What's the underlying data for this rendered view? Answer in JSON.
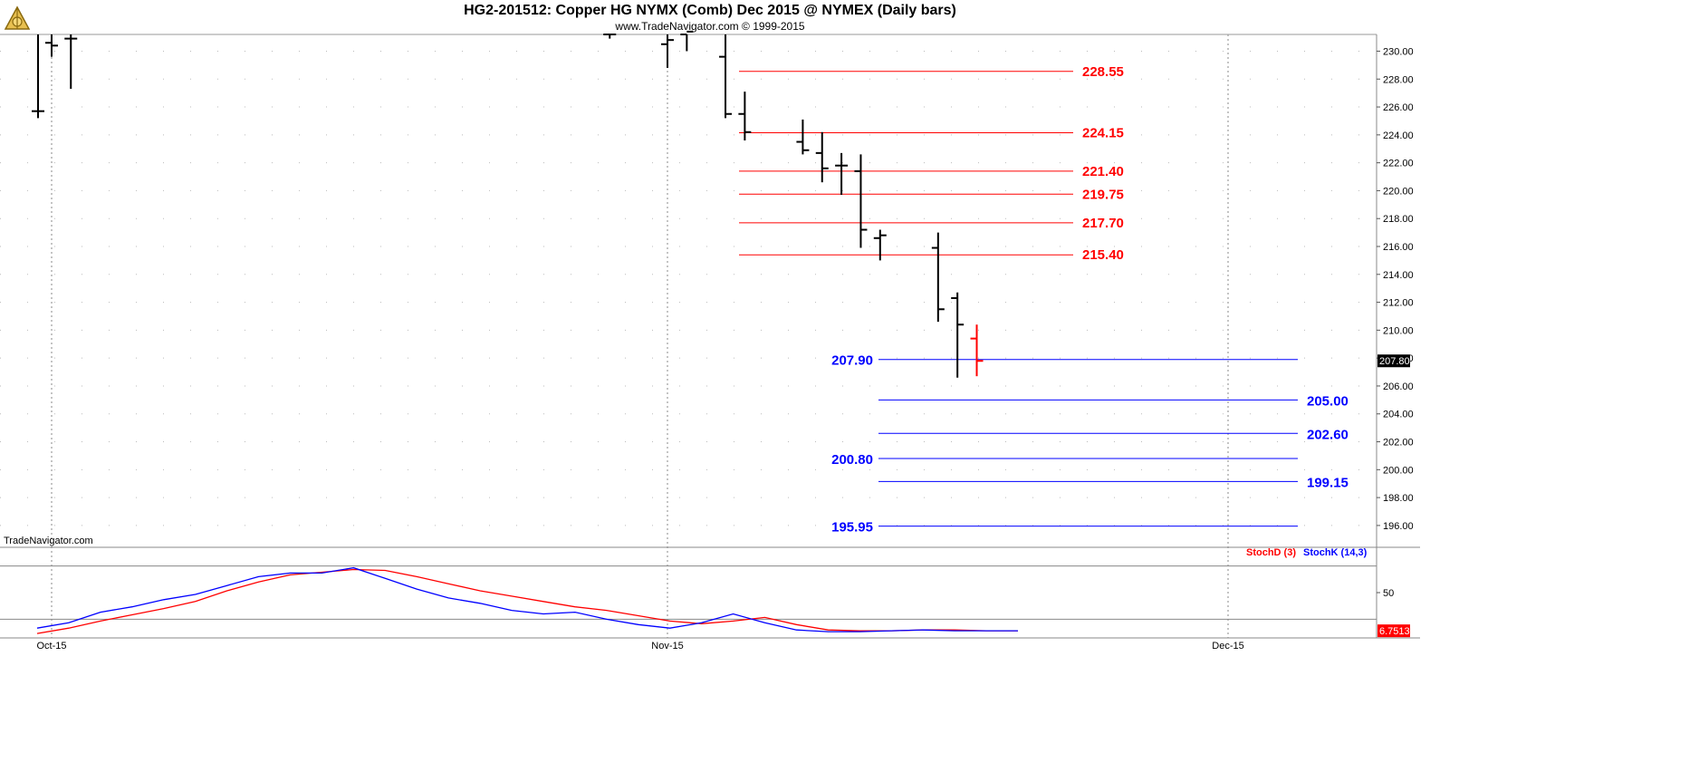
{
  "header": {
    "title": "HG2-201512:  Copper HG NYMX (Comb) Dec 2015 @ NYMEX  (Daily bars)",
    "subtitle": "www.TradeNavigator.com © 1999-2015",
    "watermark": "TradeNavigator.com"
  },
  "colors": {
    "bar": "#000000",
    "last_bar": "#ff0000",
    "resistance": "#ff0000",
    "support": "#0000ff",
    "stochD": "#ff0000",
    "stochK": "#0000ff",
    "grid": "#bbbbbb"
  },
  "chart_data": {
    "type": "ohlc",
    "ylim": [
      194.5,
      231.2
    ],
    "y_ticks": [
      "230.00",
      "228.00",
      "226.00",
      "224.00",
      "222.00",
      "220.00",
      "218.00",
      "216.00",
      "214.00",
      "212.00",
      "210.00",
      "208.00",
      "206.00",
      "204.00",
      "202.00",
      "200.00",
      "198.00",
      "196.00"
    ],
    "current_price_label": "207.80",
    "x_ticks": [
      "Oct-15",
      "Nov-15",
      "Dec-15"
    ],
    "bars": [
      {
        "date": "2015-09-29",
        "open": 225.7,
        "high": 231.5,
        "low": 225.2,
        "close": 225.7
      },
      {
        "date": "2015-10-01",
        "open": 230.6,
        "high": 231.5,
        "low": 229.6,
        "close": 230.4
      },
      {
        "date": "2015-10-02",
        "open": 230.9,
        "high": 231.5,
        "low": 227.3,
        "close": 230.9
      },
      {
        "date": "2015-10-30",
        "open": 231.2,
        "high": 231.5,
        "low": 230.9,
        "close": 231.2
      },
      {
        "date": "2015-11-02",
        "open": 230.5,
        "high": 231.5,
        "low": 228.8,
        "close": 230.8
      },
      {
        "date": "2015-11-03",
        "open": 231.2,
        "high": 231.5,
        "low": 230.0,
        "close": 231.4
      },
      {
        "date": "2015-11-05",
        "open": 229.6,
        "high": 231.5,
        "low": 225.2,
        "close": 225.5
      },
      {
        "date": "2015-11-06",
        "open": 225.5,
        "high": 227.1,
        "low": 223.6,
        "close": 224.2
      },
      {
        "date": "2015-11-09",
        "open": 223.5,
        "high": 225.1,
        "low": 222.6,
        "close": 222.9
      },
      {
        "date": "2015-11-10",
        "open": 222.7,
        "high": 224.2,
        "low": 220.6,
        "close": 221.6
      },
      {
        "date": "2015-11-11",
        "open": 221.8,
        "high": 222.7,
        "low": 219.7,
        "close": 221.8
      },
      {
        "date": "2015-11-12",
        "open": 221.4,
        "high": 222.6,
        "low": 215.9,
        "close": 217.2
      },
      {
        "date": "2015-11-13",
        "open": 216.6,
        "high": 217.2,
        "low": 215.0,
        "close": 216.8
      },
      {
        "date": "2015-11-16",
        "open": 215.9,
        "high": 217.0,
        "low": 210.6,
        "close": 211.5
      },
      {
        "date": "2015-11-17",
        "open": 212.3,
        "high": 212.7,
        "low": 206.6,
        "close": 210.4
      },
      {
        "date": "2015-11-18",
        "open": 209.4,
        "high": 210.4,
        "low": 206.7,
        "close": 207.8
      }
    ],
    "resistance_levels": [
      {
        "value": 228.55,
        "label": "228.55"
      },
      {
        "value": 224.15,
        "label": "224.15"
      },
      {
        "value": 221.4,
        "label": "221.40"
      },
      {
        "value": 219.75,
        "label": "219.75"
      },
      {
        "value": 217.7,
        "label": "217.70"
      },
      {
        "value": 215.4,
        "label": "215.40"
      }
    ],
    "support_levels": [
      {
        "value": 207.9,
        "label": "207.90",
        "label_side": "left"
      },
      {
        "value": 205.0,
        "label": "205.00",
        "label_side": "right"
      },
      {
        "value": 202.6,
        "label": "202.60",
        "label_side": "right"
      },
      {
        "value": 200.8,
        "label": "200.80",
        "label_side": "left"
      },
      {
        "value": 199.15,
        "label": "199.15",
        "label_side": "right"
      },
      {
        "value": 195.95,
        "label": "195.95",
        "label_side": "left"
      }
    ],
    "stochastic": {
      "ylim": [
        0,
        100
      ],
      "tick_label": "50",
      "reference_lines": [
        80,
        20
      ],
      "last_value_label": "6.7513",
      "series": [
        {
          "name": "StochD (3)",
          "values": [
            4,
            10,
            18,
            25,
            32,
            40,
            52,
            62,
            70,
            73,
            76,
            75,
            68,
            60,
            52,
            46,
            40,
            34,
            30,
            24,
            18,
            15,
            18,
            22,
            14,
            8,
            7,
            7,
            8,
            8,
            7,
            7
          ]
        },
        {
          "name": "StochK (14,3)",
          "values": [
            10,
            16,
            28,
            34,
            42,
            48,
            58,
            68,
            72,
            72,
            78,
            66,
            54,
            44,
            38,
            30,
            26,
            28,
            20,
            14,
            10,
            16,
            26,
            16,
            8,
            6,
            6,
            7,
            8,
            7,
            7,
            7
          ]
        }
      ]
    }
  }
}
